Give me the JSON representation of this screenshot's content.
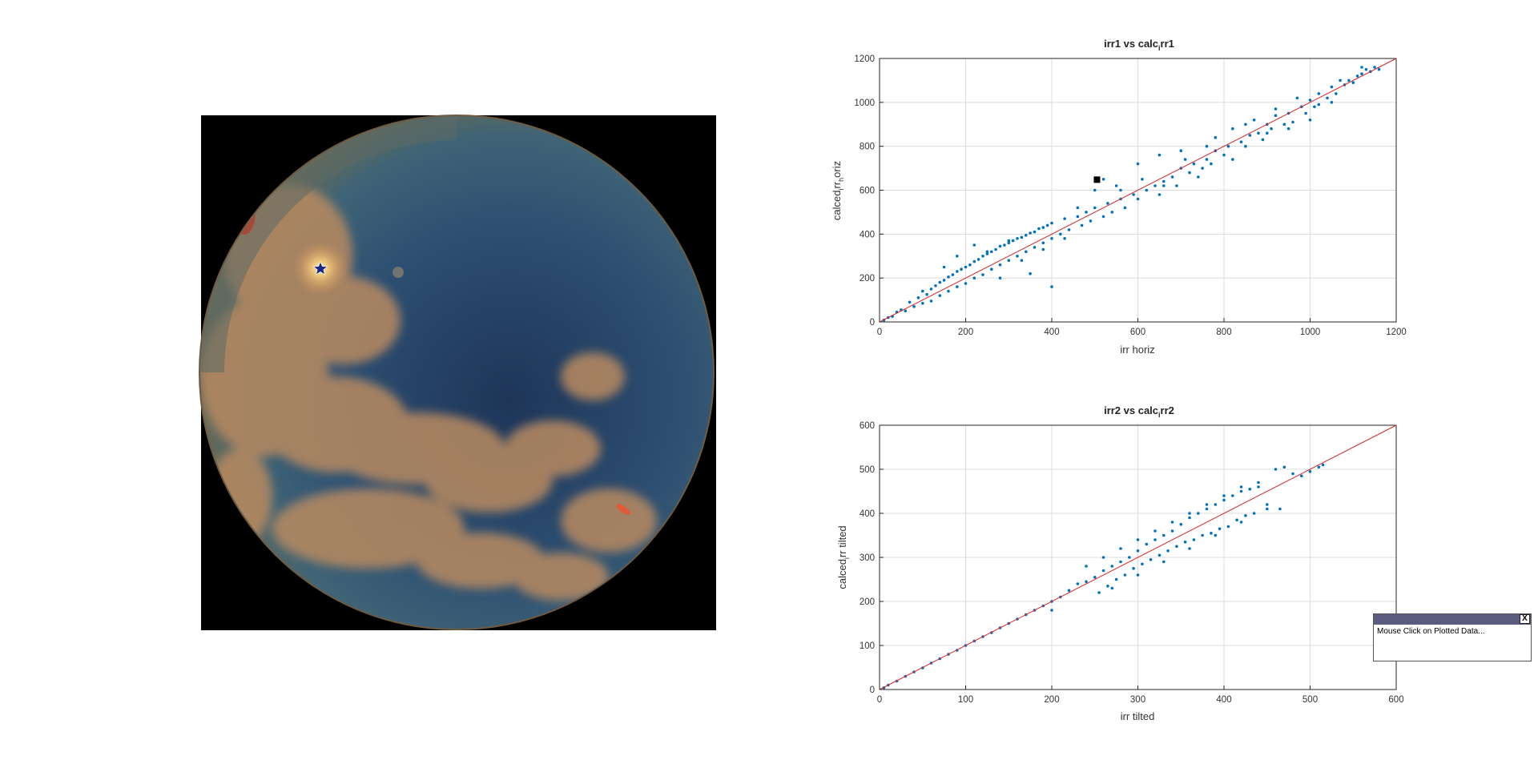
{
  "sky_image": {
    "alt": "all-sky fisheye image"
  },
  "colors": {
    "scatter": "#0072bd",
    "fit_line": "#d62728",
    "grid": "#dcdcdc",
    "axis": "#262626",
    "marker": "#000000"
  },
  "chart_data": [
    {
      "type": "scatter",
      "title": {
        "a": "irr1 vs calc",
        "sub": "i",
        "b": "rr1"
      },
      "xlabel": "irr horiz",
      "ylabel": {
        "a": "calced",
        "sub1": "i",
        "b": "rr",
        "sub2": "h",
        "c": "oriz"
      },
      "xlim": [
        0,
        1200
      ],
      "ylim": [
        0,
        1200
      ],
      "xticks": [
        "0",
        "200",
        "400",
        "600",
        "800",
        "1000",
        "1200"
      ],
      "yticks": [
        "0",
        "200",
        "400",
        "600",
        "800",
        "1000",
        "1200"
      ],
      "grid": true,
      "reference_line": {
        "from": [
          0,
          0
        ],
        "to": [
          1200,
          1200
        ]
      },
      "selected_point": [
        505,
        648
      ],
      "series": [
        {
          "points": [
            [
              10,
              8
            ],
            [
              20,
              20
            ],
            [
              30,
              25
            ],
            [
              40,
              45
            ],
            [
              50,
              55
            ],
            [
              60,
              50
            ],
            [
              70,
              90
            ],
            [
              80,
              70
            ],
            [
              90,
              110
            ],
            [
              100,
              85
            ],
            [
              100,
              140
            ],
            [
              110,
              125
            ],
            [
              120,
              95
            ],
            [
              120,
              150
            ],
            [
              130,
              165
            ],
            [
              140,
              120
            ],
            [
              140,
              180
            ],
            [
              150,
              190
            ],
            [
              160,
              140
            ],
            [
              160,
              205
            ],
            [
              170,
              215
            ],
            [
              180,
              160
            ],
            [
              180,
              230
            ],
            [
              190,
              240
            ],
            [
              200,
              175
            ],
            [
              200,
              250
            ],
            [
              210,
              260
            ],
            [
              220,
              200
            ],
            [
              220,
              275
            ],
            [
              230,
              285
            ],
            [
              240,
              215
            ],
            [
              240,
              300
            ],
            [
              250,
              310
            ],
            [
              260,
              240
            ],
            [
              260,
              320
            ],
            [
              270,
              330
            ],
            [
              280,
              260
            ],
            [
              280,
              345
            ],
            [
              290,
              350
            ],
            [
              300,
              280
            ],
            [
              300,
              360
            ],
            [
              310,
              370
            ],
            [
              320,
              300
            ],
            [
              320,
              380
            ],
            [
              330,
              385
            ],
            [
              340,
              320
            ],
            [
              340,
              395
            ],
            [
              350,
              405
            ],
            [
              360,
              340
            ],
            [
              360,
              410
            ],
            [
              370,
              425
            ],
            [
              380,
              360
            ],
            [
              380,
              430
            ],
            [
              390,
              440
            ],
            [
              400,
              380
            ],
            [
              400,
              450
            ],
            [
              420,
              400
            ],
            [
              430,
              470
            ],
            [
              440,
              420
            ],
            [
              460,
              480
            ],
            [
              470,
              440
            ],
            [
              480,
              500
            ],
            [
              490,
              460
            ],
            [
              500,
              520
            ],
            [
              520,
              480
            ],
            [
              530,
              540
            ],
            [
              540,
              500
            ],
            [
              560,
              560
            ],
            [
              570,
              520
            ],
            [
              590,
              580
            ],
            [
              600,
              560
            ],
            [
              620,
              600
            ],
            [
              640,
              620
            ],
            [
              650,
              580
            ],
            [
              660,
              640
            ],
            [
              680,
              660
            ],
            [
              690,
              620
            ],
            [
              700,
              700
            ],
            [
              720,
              680
            ],
            [
              730,
              720
            ],
            [
              740,
              660
            ],
            [
              760,
              740
            ],
            [
              770,
              720
            ],
            [
              780,
              780
            ],
            [
              800,
              760
            ],
            [
              810,
              800
            ],
            [
              820,
              740
            ],
            [
              840,
              820
            ],
            [
              850,
              800
            ],
            [
              860,
              850
            ],
            [
              880,
              860
            ],
            [
              890,
              830
            ],
            [
              900,
              900
            ],
            [
              910,
              880
            ],
            [
              920,
              940
            ],
            [
              940,
              900
            ],
            [
              950,
              950
            ],
            [
              960,
              910
            ],
            [
              980,
              980
            ],
            [
              990,
              950
            ],
            [
              1000,
              1010
            ],
            [
              1010,
              980
            ],
            [
              1020,
              1040
            ],
            [
              1040,
              1020
            ],
            [
              1050,
              1070
            ],
            [
              1060,
              1040
            ],
            [
              1080,
              1080
            ],
            [
              1090,
              1100
            ],
            [
              1100,
              1090
            ],
            [
              1110,
              1120
            ],
            [
              1120,
              1130
            ],
            [
              1130,
              1150
            ],
            [
              1140,
              1140
            ],
            [
              1150,
              1160
            ],
            [
              1160,
              1150
            ],
            [
              400,
              160
            ],
            [
              350,
              220
            ],
            [
              300,
              370
            ],
            [
              250,
              320
            ],
            [
              500,
              600
            ],
            [
              520,
              650
            ],
            [
              550,
              620
            ],
            [
              600,
              720
            ],
            [
              650,
              760
            ],
            [
              700,
              780
            ],
            [
              750,
              700
            ],
            [
              780,
              840
            ],
            [
              850,
              900
            ],
            [
              900,
              860
            ],
            [
              950,
              880
            ],
            [
              1000,
              920
            ],
            [
              1050,
              1000
            ],
            [
              180,
              300
            ],
            [
              220,
              350
            ],
            [
              150,
              250
            ],
            [
              280,
              200
            ],
            [
              330,
              280
            ],
            [
              380,
              330
            ],
            [
              430,
              380
            ],
            [
              460,
              520
            ],
            [
              560,
              600
            ],
            [
              610,
              650
            ],
            [
              660,
              620
            ],
            [
              710,
              740
            ],
            [
              760,
              800
            ],
            [
              820,
              880
            ],
            [
              870,
              920
            ],
            [
              920,
              970
            ],
            [
              970,
              1020
            ],
            [
              1020,
              990
            ],
            [
              1070,
              1100
            ],
            [
              1120,
              1160
            ]
          ]
        }
      ]
    },
    {
      "type": "scatter",
      "title": {
        "a": "irr2 vs calc",
        "sub": "i",
        "b": "rr2"
      },
      "xlabel": "irr tilted",
      "ylabel": {
        "a": "calced",
        "sub1": "i",
        "b": "rr tilted"
      },
      "xlim": [
        0,
        600
      ],
      "ylim": [
        0,
        600
      ],
      "xticks": [
        "0",
        "100",
        "200",
        "300",
        "400",
        "500",
        "600"
      ],
      "yticks": [
        "0",
        "100",
        "200",
        "300",
        "400",
        "500",
        "600"
      ],
      "grid": true,
      "reference_line": {
        "from": [
          0,
          0
        ],
        "to": [
          600,
          600
        ]
      },
      "series": [
        {
          "points": [
            [
              5,
              4
            ],
            [
              10,
              10
            ],
            [
              20,
              19
            ],
            [
              30,
              30
            ],
            [
              40,
              40
            ],
            [
              50,
              49
            ],
            [
              60,
              60
            ],
            [
              70,
              70
            ],
            [
              80,
              80
            ],
            [
              90,
              89
            ],
            [
              100,
              100
            ],
            [
              110,
              110
            ],
            [
              120,
              120
            ],
            [
              130,
              129
            ],
            [
              140,
              140
            ],
            [
              150,
              150
            ],
            [
              160,
              160
            ],
            [
              170,
              170
            ],
            [
              180,
              180
            ],
            [
              190,
              190
            ],
            [
              200,
              200
            ],
            [
              200,
              180
            ],
            [
              210,
              210
            ],
            [
              220,
              225
            ],
            [
              230,
              240
            ],
            [
              240,
              245
            ],
            [
              250,
              255
            ],
            [
              255,
              220
            ],
            [
              260,
              270
            ],
            [
              265,
              235
            ],
            [
              270,
              280
            ],
            [
              275,
              250
            ],
            [
              280,
              290
            ],
            [
              285,
              260
            ],
            [
              290,
              300
            ],
            [
              295,
              275
            ],
            [
              300,
              315
            ],
            [
              305,
              285
            ],
            [
              310,
              330
            ],
            [
              315,
              295
            ],
            [
              320,
              340
            ],
            [
              325,
              305
            ],
            [
              330,
              350
            ],
            [
              335,
              315
            ],
            [
              340,
              360
            ],
            [
              345,
              325
            ],
            [
              350,
              375
            ],
            [
              355,
              335
            ],
            [
              360,
              390
            ],
            [
              365,
              340
            ],
            [
              370,
              400
            ],
            [
              375,
              350
            ],
            [
              380,
              410
            ],
            [
              385,
              355
            ],
            [
              390,
              420
            ],
            [
              395,
              365
            ],
            [
              400,
              430
            ],
            [
              405,
              370
            ],
            [
              410,
              440
            ],
            [
              415,
              385
            ],
            [
              420,
              450
            ],
            [
              425,
              395
            ],
            [
              430,
              455
            ],
            [
              435,
              400
            ],
            [
              440,
              460
            ],
            [
              450,
              420
            ],
            [
              460,
              500
            ],
            [
              465,
              410
            ],
            [
              470,
              505
            ],
            [
              480,
              490
            ],
            [
              490,
              485
            ],
            [
              500,
              495
            ],
            [
              510,
              505
            ],
            [
              515,
              510
            ],
            [
              240,
              280
            ],
            [
              260,
              300
            ],
            [
              280,
              320
            ],
            [
              300,
              340
            ],
            [
              320,
              360
            ],
            [
              340,
              380
            ],
            [
              360,
              400
            ],
            [
              380,
              420
            ],
            [
              400,
              440
            ],
            [
              420,
              460
            ],
            [
              440,
              470
            ],
            [
              270,
              230
            ],
            [
              300,
              260
            ],
            [
              330,
              290
            ],
            [
              360,
              320
            ],
            [
              390,
              350
            ],
            [
              420,
              380
            ],
            [
              450,
              410
            ]
          ]
        }
      ]
    }
  ],
  "datatip": {
    "close_label": "X",
    "message": "Mouse Click on Plotted Data..."
  }
}
